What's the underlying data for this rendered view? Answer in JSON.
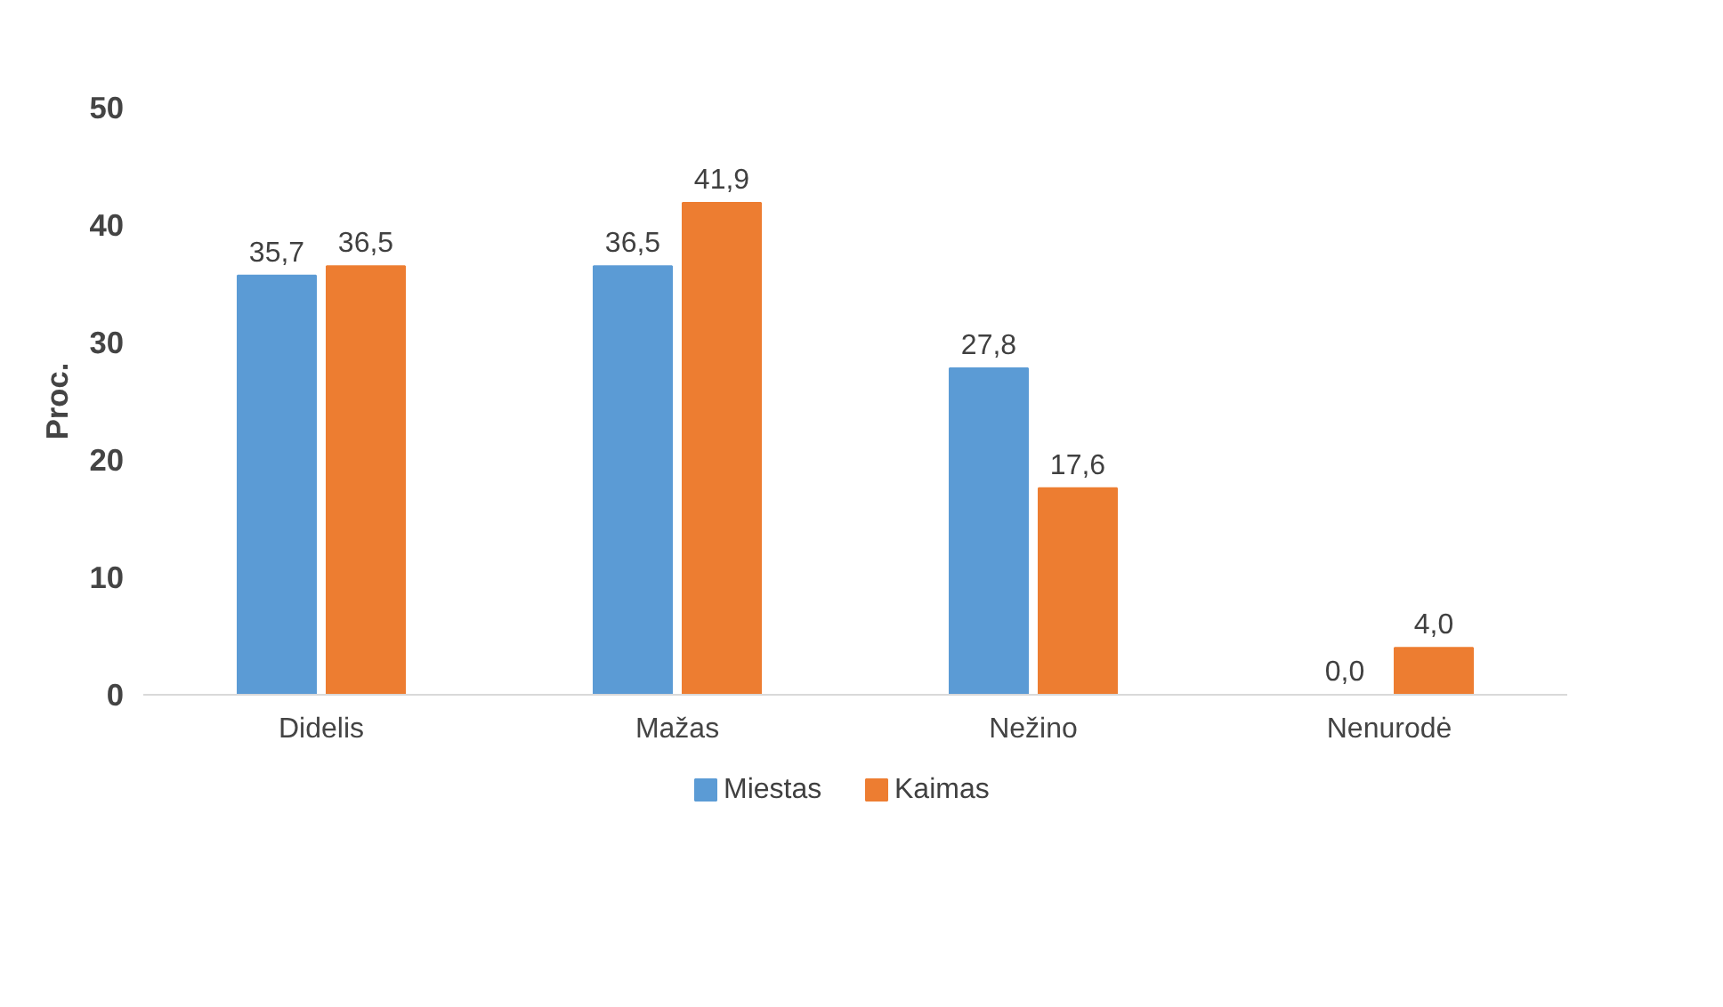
{
  "chart_data": {
    "type": "bar",
    "ylabel": "Proc.",
    "categories": [
      "Didelis",
      "Mažas",
      "Nežino",
      "Nenurodė"
    ],
    "series": [
      {
        "name": "Miestas",
        "color": "#5b9bd5",
        "values": [
          35.7,
          36.5,
          27.8,
          0.0
        ],
        "value_labels": [
          "35,7",
          "36,5",
          "27,8",
          "0,0"
        ]
      },
      {
        "name": "Kaimas",
        "color": "#ed7d31",
        "values": [
          36.5,
          41.9,
          17.6,
          4.0
        ],
        "value_labels": [
          "36,5",
          "41,9",
          "17,6",
          "4,0"
        ]
      }
    ],
    "ylim": [
      0,
      50
    ],
    "yticks": [
      0,
      10,
      20,
      30,
      40,
      50
    ],
    "grid": false,
    "legend": "bottom"
  }
}
